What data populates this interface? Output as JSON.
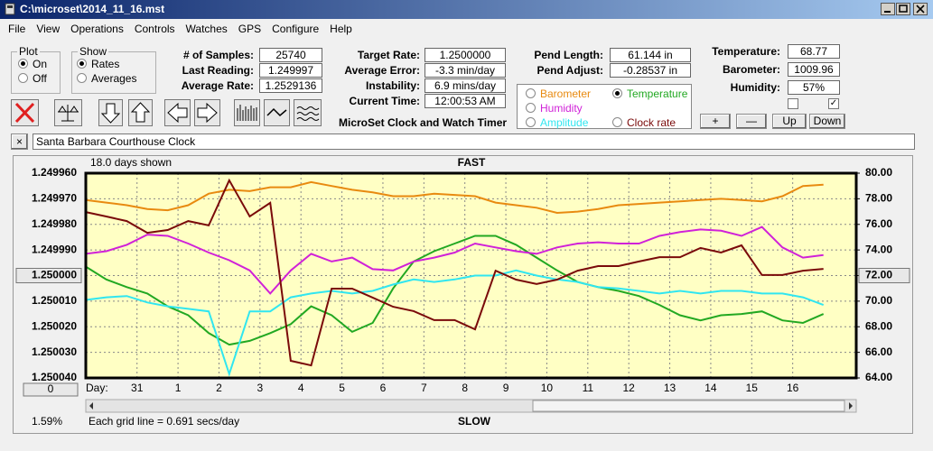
{
  "window": {
    "title": "C:\\microset\\2014_11_16.mst"
  },
  "menu": [
    "File",
    "View",
    "Operations",
    "Controls",
    "Watches",
    "GPS",
    "Configure",
    "Help"
  ],
  "plot_group": {
    "title": "Plot",
    "options": [
      "On",
      "Off"
    ],
    "selected": 0
  },
  "show_group": {
    "title": "Show",
    "options": [
      "Rates",
      "Averages"
    ],
    "selected": 0
  },
  "readouts": [
    [
      {
        "label": "# of Samples:",
        "value": "25740"
      },
      {
        "label": "Last Reading:",
        "value": "1.249997"
      },
      {
        "label": "Average Rate:",
        "value": "1.2529136"
      }
    ],
    [
      {
        "label": "Target Rate:",
        "value": "1.2500000"
      },
      {
        "label": "Average Error:",
        "value": "-3.3 min/day"
      },
      {
        "label": "Instability:",
        "value": "6.9 mins/day"
      },
      {
        "label": "Current Time:",
        "value": "12:00:53 AM"
      }
    ],
    [
      {
        "label": "Pend Length:",
        "value": "61.144 in"
      },
      {
        "label": "Pend Adjust:",
        "value": "-0.28537 in"
      }
    ],
    [
      {
        "label": "Temperature:",
        "value": "68.77"
      },
      {
        "label": "Barometer:",
        "value": "1009.96"
      },
      {
        "label": "Humidity:",
        "value": "57%"
      }
    ]
  ],
  "checkboxes": [
    false,
    true
  ],
  "trace_buttons": [
    "+",
    "—",
    "Up",
    "Down"
  ],
  "app_name": "MicroSet Clock and Watch Timer",
  "clock_name": "Santa Barbara Courthouse Clock",
  "chart_data": {
    "type": "line",
    "days_shown": "18.0 days shown",
    "top_label": "FAST",
    "bottom_label": "SLOW",
    "x_label": "Day:",
    "grid_note": "Each grid line = 0.691 secs/day",
    "corner_label": "1.59%",
    "reset_button": "0",
    "grid": true,
    "legend_selected": 1,
    "x": [
      0,
      0.5,
      1,
      1.5,
      2,
      2.5,
      3,
      3.5,
      4,
      4.5,
      5,
      5.5,
      6,
      6.5,
      7,
      7.5,
      8,
      8.5,
      9,
      9.5,
      10,
      10.5,
      11,
      11.5,
      12,
      12.5,
      13,
      13.5,
      14,
      14.5,
      15,
      15.5,
      16,
      16.5,
      17,
      17.5,
      18
    ],
    "xlim": [
      0,
      18.8
    ],
    "xticks": [
      {
        "value": 1.25,
        "label": "31"
      },
      {
        "value": 2.25,
        "label": "1"
      },
      {
        "value": 3.25,
        "label": "2"
      },
      {
        "value": 4.25,
        "label": "3"
      },
      {
        "value": 5.25,
        "label": "4"
      },
      {
        "value": 6.25,
        "label": "5"
      },
      {
        "value": 7.25,
        "label": "6"
      },
      {
        "value": 8.25,
        "label": "7"
      },
      {
        "value": 9.25,
        "label": "8"
      },
      {
        "value": 10.25,
        "label": "9"
      },
      {
        "value": 11.25,
        "label": "10"
      },
      {
        "value": 12.25,
        "label": "11"
      },
      {
        "value": 13.25,
        "label": "12"
      },
      {
        "value": 14.25,
        "label": "13"
      },
      {
        "value": 15.25,
        "label": "14"
      },
      {
        "value": 16.25,
        "label": "15"
      },
      {
        "value": 17.25,
        "label": "16"
      }
    ],
    "ylim": [
      1.25004,
      1.24996
    ],
    "yticks": [
      {
        "value": 1.24996,
        "label": "1.249960"
      },
      {
        "value": 1.24997,
        "label": "1.249970"
      },
      {
        "value": 1.24998,
        "label": "1.249980"
      },
      {
        "value": 1.24999,
        "label": "1.249990"
      },
      {
        "value": 1.25,
        "label": "1.250000"
      },
      {
        "value": 1.25001,
        "label": "1.250010"
      },
      {
        "value": 1.25002,
        "label": "1.250020"
      },
      {
        "value": 1.25003,
        "label": "1.250030"
      },
      {
        "value": 1.25004,
        "label": "1.250040"
      }
    ],
    "y2lim": [
      64,
      80
    ],
    "y2ticks": [
      {
        "value": 80,
        "label": "80.00"
      },
      {
        "value": 78,
        "label": "78.00"
      },
      {
        "value": 76,
        "label": "76.00"
      },
      {
        "value": 74,
        "label": "74.00"
      },
      {
        "value": 72,
        "label": "72.00"
      },
      {
        "value": 70,
        "label": "70.00"
      },
      {
        "value": 68,
        "label": "68.00"
      },
      {
        "value": 66,
        "label": "66.00"
      },
      {
        "value": 64,
        "label": "64.00"
      }
    ],
    "series": [
      {
        "name": "Barometer",
        "color": "#e88a10",
        "axis": "y2",
        "values": [
          77.9,
          77.7,
          77.5,
          77.2,
          77.1,
          77.5,
          78.4,
          78.7,
          78.6,
          78.9,
          78.9,
          79.3,
          79.0,
          78.7,
          78.5,
          78.2,
          78.2,
          78.4,
          78.3,
          78.2,
          77.7,
          77.5,
          77.3,
          76.9,
          77.0,
          77.2,
          77.5,
          77.6,
          77.7,
          77.8,
          77.9,
          78.0,
          77.9,
          77.8,
          78.2,
          79.0,
          79.1
        ]
      },
      {
        "name": "Temperature",
        "color": "#22a822",
        "axis": "y2",
        "values": [
          72.7,
          71.7,
          71.1,
          70.6,
          69.6,
          68.9,
          67.5,
          66.6,
          66.9,
          67.5,
          68.2,
          69.6,
          68.9,
          67.6,
          68.3,
          71.0,
          73.1,
          73.9,
          74.5,
          75.1,
          75.1,
          74.4,
          73.4,
          72.4,
          71.5,
          71.1,
          70.8,
          70.4,
          69.7,
          68.9,
          68.5,
          68.9,
          69.0,
          69.2,
          68.5,
          68.3,
          69.0
        ]
      },
      {
        "name": "Humidity",
        "color": "#d021d8",
        "axis": "y2",
        "values": [
          73.7,
          73.9,
          74.4,
          75.2,
          75.1,
          74.5,
          73.8,
          73.2,
          72.4,
          70.6,
          72.4,
          73.7,
          73.1,
          73.4,
          72.5,
          72.4,
          73.1,
          73.4,
          73.8,
          74.5,
          74.2,
          73.9,
          73.7,
          74.2,
          74.5,
          74.6,
          74.5,
          74.5,
          75.1,
          75.4,
          75.6,
          75.5,
          75.1,
          75.8,
          74.2,
          73.4,
          73.6
        ]
      },
      {
        "name": "Amplitude",
        "color": "#30e6f0",
        "axis": "y2",
        "values": [
          70.1,
          70.3,
          70.4,
          69.9,
          69.6,
          69.4,
          69.2,
          64.3,
          69.2,
          69.2,
          70.3,
          70.6,
          70.8,
          70.6,
          70.8,
          71.3,
          71.7,
          71.5,
          71.7,
          72.0,
          72.0,
          72.4,
          72.0,
          71.7,
          71.5,
          71.1,
          71.0,
          70.8,
          70.6,
          70.8,
          70.6,
          70.8,
          70.8,
          70.6,
          70.6,
          70.3,
          69.7
        ]
      },
      {
        "name": "Clock rate",
        "color": "#7a0a0a",
        "values": [
          1.2499752,
          1.2499769,
          1.2499787,
          1.2499833,
          1.2499822,
          1.2499787,
          1.2499804,
          1.2499628,
          1.2499769,
          1.2499716,
          1.2500333,
          1.2500351,
          1.2500051,
          1.2500051,
          1.2500086,
          1.2500122,
          1.2500139,
          1.2500174,
          1.2500174,
          1.250021,
          1.2499981,
          1.2500016,
          1.2500033,
          1.2500016,
          1.2499981,
          1.2499963,
          1.2499963,
          1.2499945,
          1.2499928,
          1.2499928,
          1.2499892,
          1.249991,
          1.2499882,
          1.2499998,
          1.2499998,
          1.2499981,
          1.2499974
        ]
      }
    ]
  }
}
